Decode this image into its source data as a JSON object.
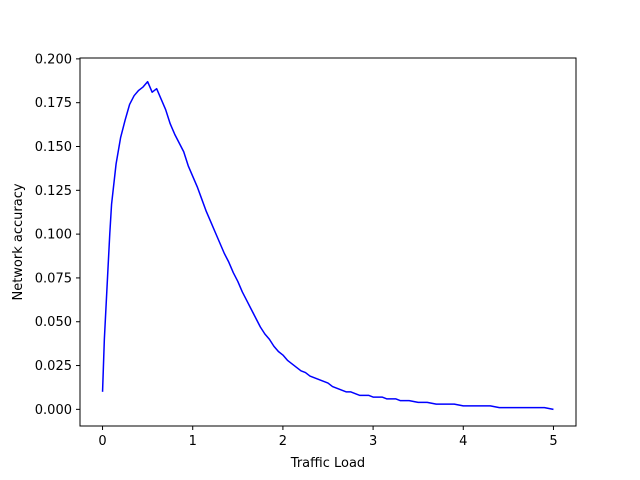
{
  "chart_data": {
    "type": "line",
    "title": "",
    "xlabel": "Traffic Load",
    "ylabel": "Network accuracy",
    "xlim": [
      -0.25,
      5.25
    ],
    "ylim": [
      -0.0095,
      0.2005
    ],
    "xticks": [
      0,
      1,
      2,
      3,
      4,
      5
    ],
    "xtick_labels": [
      "0",
      "1",
      "2",
      "3",
      "4",
      "5"
    ],
    "yticks": [
      0.0,
      0.025,
      0.05,
      0.075,
      0.1,
      0.125,
      0.15,
      0.175,
      0.2
    ],
    "ytick_labels": [
      "0.000",
      "0.025",
      "0.050",
      "0.075",
      "0.100",
      "0.125",
      "0.150",
      "0.175",
      "0.200"
    ],
    "grid": false,
    "legend": "none",
    "series": [
      {
        "color": "#0000ff",
        "x": [
          0.0,
          0.02,
          0.05,
          0.08,
          0.1,
          0.15,
          0.2,
          0.25,
          0.3,
          0.35,
          0.4,
          0.45,
          0.5,
          0.55,
          0.6,
          0.65,
          0.7,
          0.75,
          0.8,
          0.85,
          0.9,
          0.95,
          1.0,
          1.05,
          1.1,
          1.15,
          1.2,
          1.25,
          1.3,
          1.35,
          1.4,
          1.45,
          1.5,
          1.55,
          1.6,
          1.65,
          1.7,
          1.75,
          1.8,
          1.85,
          1.9,
          1.95,
          2.0,
          2.05,
          2.1,
          2.15,
          2.2,
          2.25,
          2.3,
          2.35,
          2.4,
          2.45,
          2.5,
          2.55,
          2.6,
          2.65,
          2.7,
          2.75,
          2.8,
          2.85,
          2.9,
          2.95,
          3.0,
          3.05,
          3.1,
          3.15,
          3.2,
          3.25,
          3.3,
          3.35,
          3.4,
          3.5,
          3.6,
          3.7,
          3.8,
          3.9,
          4.0,
          4.1,
          4.2,
          4.3,
          4.4,
          4.5,
          4.6,
          4.7,
          4.8,
          4.9,
          5.0
        ],
        "y": [
          0.01,
          0.04,
          0.07,
          0.1,
          0.117,
          0.14,
          0.155,
          0.165,
          0.174,
          0.179,
          0.182,
          0.184,
          0.187,
          0.181,
          0.183,
          0.177,
          0.171,
          0.163,
          0.157,
          0.152,
          0.147,
          0.139,
          0.133,
          0.127,
          0.12,
          0.113,
          0.107,
          0.101,
          0.095,
          0.089,
          0.084,
          0.078,
          0.073,
          0.067,
          0.062,
          0.057,
          0.052,
          0.047,
          0.043,
          0.04,
          0.036,
          0.033,
          0.031,
          0.028,
          0.026,
          0.024,
          0.022,
          0.021,
          0.019,
          0.018,
          0.017,
          0.016,
          0.015,
          0.013,
          0.012,
          0.011,
          0.01,
          0.01,
          0.009,
          0.008,
          0.008,
          0.008,
          0.007,
          0.007,
          0.007,
          0.006,
          0.006,
          0.006,
          0.005,
          0.005,
          0.005,
          0.004,
          0.004,
          0.003,
          0.003,
          0.003,
          0.002,
          0.002,
          0.002,
          0.002,
          0.001,
          0.001,
          0.001,
          0.001,
          0.001,
          0.001,
          0.0
        ]
      }
    ]
  }
}
